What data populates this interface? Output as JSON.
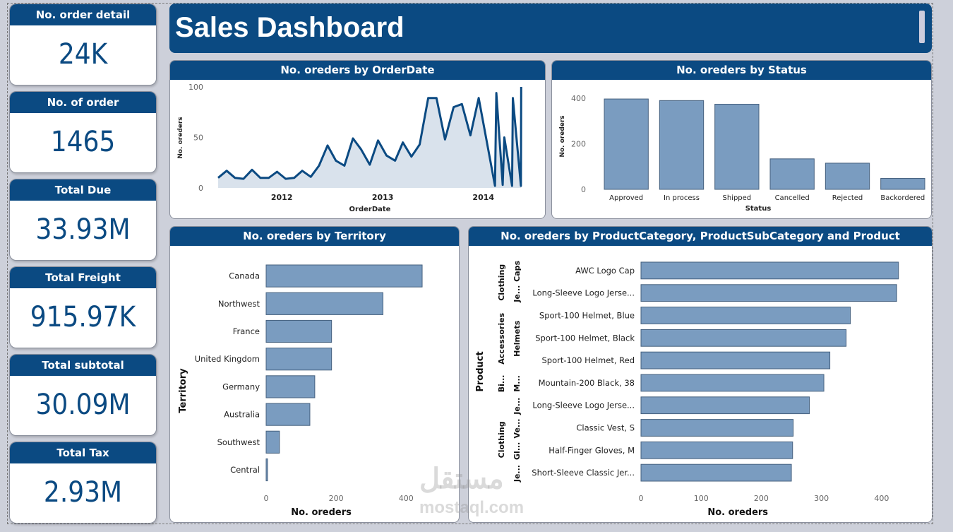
{
  "kpis": [
    {
      "label": "No. order detail",
      "value": "24K"
    },
    {
      "label": "No. of order",
      "value": "1465"
    },
    {
      "label": "Total Due",
      "value": "33.93M"
    },
    {
      "label": "Total Freight",
      "value": "915.97K"
    },
    {
      "label": "Total subtotal",
      "value": "30.09M"
    },
    {
      "label": "Total Tax",
      "value": "2.93M"
    }
  ],
  "header": {
    "title": "Sales Dashboard"
  },
  "watermark": "mostaql.com",
  "colors": {
    "brand": "#0b4a82",
    "bar": "#7a9cc0",
    "area": "#d9e2ec"
  },
  "chart_data": [
    {
      "type": "area",
      "title": "No. oreders by OrderDate",
      "xlabel": "OrderDate",
      "ylabel": "No. oreders",
      "ylim": [
        0,
        100
      ],
      "yticks": [
        0,
        50,
        100
      ],
      "xticks": [
        "2012",
        "2013",
        "2014"
      ],
      "xlim": [
        "2011-05-10",
        "2014-05-25"
      ],
      "points": [
        [
          "2011-05-15",
          10
        ],
        [
          "2011-06-15",
          17
        ],
        [
          "2011-07-15",
          10
        ],
        [
          "2011-08-15",
          9
        ],
        [
          "2011-09-15",
          18
        ],
        [
          "2011-10-15",
          10
        ],
        [
          "2011-11-15",
          10
        ],
        [
          "2011-12-15",
          16
        ],
        [
          "2012-01-15",
          9
        ],
        [
          "2012-02-15",
          10
        ],
        [
          "2012-03-15",
          17
        ],
        [
          "2012-04-15",
          11
        ],
        [
          "2012-05-15",
          22
        ],
        [
          "2012-06-15",
          42
        ],
        [
          "2012-07-15",
          27
        ],
        [
          "2012-08-15",
          22
        ],
        [
          "2012-09-15",
          49
        ],
        [
          "2012-10-15",
          38
        ],
        [
          "2012-11-15",
          23
        ],
        [
          "2012-12-15",
          47
        ],
        [
          "2013-01-15",
          32
        ],
        [
          "2013-02-15",
          27
        ],
        [
          "2013-03-15",
          45
        ],
        [
          "2013-04-15",
          31
        ],
        [
          "2013-05-15",
          43
        ],
        [
          "2013-06-15",
          89
        ],
        [
          "2013-07-15",
          89
        ],
        [
          "2013-08-15",
          48
        ],
        [
          "2013-09-15",
          80
        ],
        [
          "2013-10-15",
          83
        ],
        [
          "2013-11-15",
          52
        ],
        [
          "2013-12-15",
          89
        ],
        [
          "2014-02-12",
          2
        ],
        [
          "2014-02-17",
          94
        ],
        [
          "2014-03-12",
          3
        ],
        [
          "2014-03-18",
          50
        ],
        [
          "2014-04-15",
          2
        ],
        [
          "2014-04-18",
          89
        ],
        [
          "2014-05-17",
          2
        ],
        [
          "2014-05-18",
          100
        ]
      ]
    },
    {
      "type": "bar",
      "title": "No. oreders by Status",
      "xlabel": "Status",
      "ylabel": "No. oreders",
      "ylim": [
        0,
        450
      ],
      "yticks": [
        0,
        200,
        400
      ],
      "categories": [
        "Approved",
        "In process",
        "Shipped",
        "Cancelled",
        "Rejected",
        "Backordered"
      ],
      "values": [
        397,
        390,
        374,
        134,
        115,
        48
      ]
    },
    {
      "type": "bar",
      "orientation": "horizontal",
      "title": "No. oreders by Territory",
      "xlabel": "No. oreders",
      "ylabel": "Territory",
      "xlim": [
        0,
        450
      ],
      "xticks": [
        0,
        200,
        400
      ],
      "categories": [
        "Canada",
        "Northwest",
        "France",
        "United Kingdom",
        "Germany",
        "Australia",
        "Southwest",
        "Central"
      ],
      "values": [
        446,
        334,
        187,
        187,
        139,
        125,
        38,
        4
      ]
    },
    {
      "type": "bar",
      "orientation": "horizontal",
      "title": "No. oreders by ProductCategory, ProductSubCategory and Product",
      "xlabel": "No. oreders",
      "ylabel": "Product",
      "xlim": [
        0,
        460
      ],
      "xticks": [
        0,
        100,
        200,
        300,
        400
      ],
      "categories": [
        "AWC Logo Cap",
        "Long-Sleeve Logo Jerse...",
        "Sport-100 Helmet, Blue",
        "Sport-100 Helmet, Black",
        "Sport-100 Helmet, Red",
        "Mountain-200 Black, 38",
        "Long-Sleeve Logo Jerse...",
        "Classic Vest, S",
        "Half-Finger Gloves, M",
        "Short-Sleeve Classic Jer..."
      ],
      "values": [
        428,
        425,
        348,
        341,
        314,
        304,
        280,
        253,
        252,
        250
      ],
      "category_groups": [
        {
          "label": "Clothing",
          "from": 0,
          "to": 1
        },
        {
          "label": "Accessories",
          "from": 2,
          "to": 4
        },
        {
          "label": "Bi...",
          "from": 5,
          "to": 5
        },
        {
          "label": "Clothing",
          "from": 6,
          "to": 9
        }
      ],
      "subcategory_groups": [
        {
          "label": "Caps",
          "from": 0,
          "to": 0
        },
        {
          "label": "Je...",
          "from": 1,
          "to": 1
        },
        {
          "label": "Helmets",
          "from": 2,
          "to": 4
        },
        {
          "label": "M...",
          "from": 5,
          "to": 5
        },
        {
          "label": "Je...",
          "from": 6,
          "to": 6
        },
        {
          "label": "Ve...",
          "from": 7,
          "to": 7
        },
        {
          "label": "Gl...",
          "from": 8,
          "to": 8
        },
        {
          "label": "Je...",
          "from": 9,
          "to": 9
        }
      ]
    }
  ]
}
